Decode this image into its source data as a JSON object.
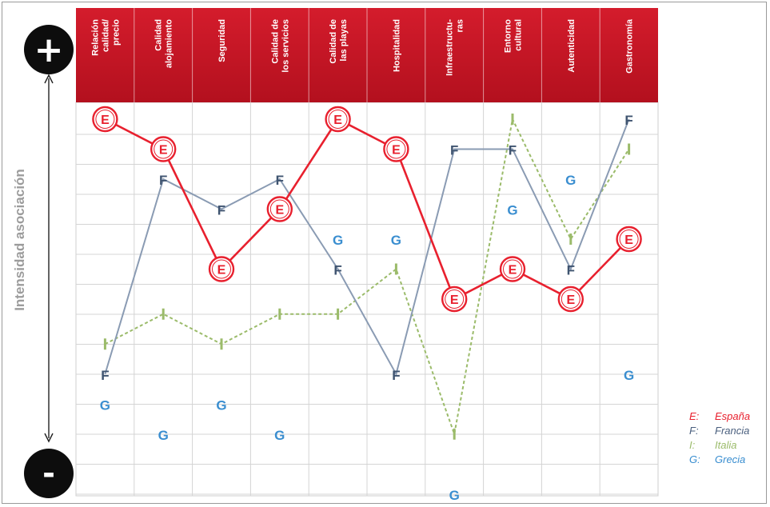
{
  "chart_data": {
    "type": "line",
    "categories": [
      "Relación calidad/ precio",
      "Calidad alojamiento",
      "Seguridad",
      "Calidad de los servicios",
      "Calidad de las playas",
      "Hospitalidad",
      "Infraestructu- ras",
      "Entorno cultural",
      "Autenticidad",
      "Gastronomía"
    ],
    "category_lines": [
      [
        "Relación",
        "calidad/",
        "precio"
      ],
      [
        "Calidad",
        "alojamiento"
      ],
      [
        "Seguridad"
      ],
      [
        "Calidad de",
        "los servicios"
      ],
      [
        "Calidad de",
        "las playas"
      ],
      [
        "Hospitalidad"
      ],
      [
        "Infraestructu-",
        "ras"
      ],
      [
        "Entorno",
        "cultural"
      ],
      [
        "Autenticidad"
      ],
      [
        "Gastronomía"
      ]
    ],
    "ylabel": "Intensidad asociación",
    "y_top_marker": "+",
    "y_bottom_marker": "-",
    "ylim": [
      0,
      12
    ],
    "grid": true,
    "legend_position": "bottom-right",
    "series": [
      {
        "name": "España",
        "marker": "E",
        "color": "#e8202e",
        "line": "solid",
        "values": [
          12.0,
          11.0,
          7.0,
          9.0,
          12.0,
          11.0,
          6.0,
          7.0,
          6.0,
          8.0
        ]
      },
      {
        "name": "Francia",
        "marker": "F",
        "color": "#8a9bb3",
        "line": "solid",
        "values": [
          3.5,
          10.0,
          9.0,
          10.0,
          7.0,
          3.5,
          11.0,
          11.0,
          7.0,
          12.0
        ]
      },
      {
        "name": "Italia",
        "marker": "I",
        "color": "#9bbb6a",
        "line": "dashed",
        "values": [
          4.5,
          5.5,
          4.5,
          5.5,
          5.5,
          7.0,
          1.5,
          12.0,
          8.0,
          11.0
        ]
      },
      {
        "name": "Grecia",
        "marker": "G",
        "color": "#3a8ed0",
        "line": "none",
        "values": [
          2.5,
          1.5,
          2.5,
          1.5,
          8.0,
          8.0,
          -0.5,
          9.0,
          10.0,
          3.5
        ]
      }
    ],
    "legend": [
      {
        "key": "E:",
        "label": "España",
        "color": "#e8202e"
      },
      {
        "key": "F:",
        "label": "Francia",
        "color": "#4a5f7e"
      },
      {
        "key": "I:",
        "label": "Italia",
        "color": "#9bbb6a"
      },
      {
        "key": "G:",
        "label": "Grecia",
        "color": "#3a8ed0"
      }
    ]
  }
}
